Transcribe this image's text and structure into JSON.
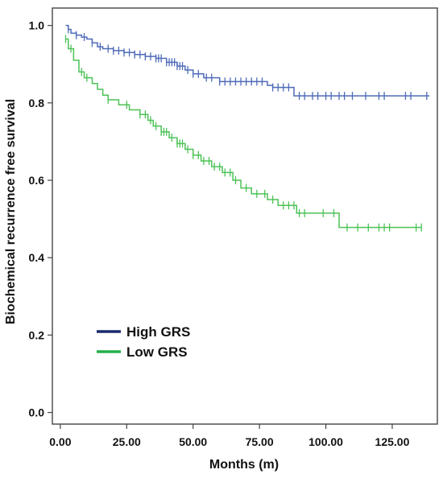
{
  "chart_data": {
    "type": "line",
    "subtype": "kaplan-meier-step",
    "title": "",
    "xlabel": "Months (m)",
    "ylabel": "Biochemical recurrence free survival",
    "xlim": [
      -3,
      142
    ],
    "ylim": [
      -0.03,
      1.045
    ],
    "x_ticks": [
      0,
      25,
      50,
      75,
      100,
      125
    ],
    "x_tick_labels": [
      "0.00",
      "25.00",
      "50.00",
      "75.00",
      "100.00",
      "125.00"
    ],
    "y_ticks": [
      0,
      0.2,
      0.4,
      0.6,
      0.8,
      1.0
    ],
    "y_tick_labels": [
      "0.0",
      "0.2",
      "0.4",
      "0.6",
      "0.8",
      "1.0"
    ],
    "grid": false,
    "legend_position": "bottom-left",
    "series": [
      {
        "name": "High GRS",
        "color": "#1a2b6e",
        "line_color": "#4f6bb8",
        "censor_color": "#4f6bb8",
        "steps": [
          [
            2,
            1.0
          ],
          [
            3,
            0.99
          ],
          [
            4,
            0.98
          ],
          [
            6,
            0.975
          ],
          [
            8,
            0.97
          ],
          [
            10,
            0.965
          ],
          [
            12,
            0.955
          ],
          [
            14,
            0.945
          ],
          [
            16,
            0.94
          ],
          [
            20,
            0.935
          ],
          [
            24,
            0.93
          ],
          [
            28,
            0.925
          ],
          [
            32,
            0.92
          ],
          [
            36,
            0.915
          ],
          [
            40,
            0.905
          ],
          [
            44,
            0.895
          ],
          [
            47,
            0.885
          ],
          [
            50,
            0.875
          ],
          [
            54,
            0.865
          ],
          [
            60,
            0.855
          ],
          [
            78,
            0.845
          ],
          [
            80,
            0.84
          ],
          [
            88,
            0.818
          ],
          [
            139,
            0.818
          ]
        ],
        "censored": [
          3,
          6,
          9,
          12,
          15,
          18,
          20,
          22,
          24,
          26,
          28,
          30,
          32,
          34,
          36,
          37,
          38,
          40,
          41,
          42,
          43,
          44,
          45,
          46,
          48,
          50,
          52,
          55,
          57,
          60,
          62,
          64,
          66,
          68,
          70,
          72,
          74,
          76,
          80,
          82,
          84,
          86,
          90,
          92,
          95,
          97,
          100,
          102,
          105,
          107,
          110,
          115,
          120,
          122,
          130,
          132,
          138
        ]
      },
      {
        "name": "Low GRS",
        "color": "#22b04a",
        "line_color": "#4cc257",
        "censor_color": "#4cc257",
        "steps": [
          [
            2,
            0.965
          ],
          [
            3,
            0.94
          ],
          [
            5,
            0.91
          ],
          [
            7,
            0.88
          ],
          [
            9,
            0.865
          ],
          [
            12,
            0.85
          ],
          [
            14,
            0.835
          ],
          [
            16,
            0.82
          ],
          [
            18,
            0.808
          ],
          [
            22,
            0.795
          ],
          [
            26,
            0.782
          ],
          [
            30,
            0.77
          ],
          [
            33,
            0.755
          ],
          [
            35,
            0.74
          ],
          [
            38,
            0.725
          ],
          [
            41,
            0.71
          ],
          [
            44,
            0.695
          ],
          [
            47,
            0.68
          ],
          [
            50,
            0.665
          ],
          [
            53,
            0.65
          ],
          [
            57,
            0.635
          ],
          [
            61,
            0.62
          ],
          [
            65,
            0.6
          ],
          [
            68,
            0.58
          ],
          [
            72,
            0.565
          ],
          [
            78,
            0.55
          ],
          [
            82,
            0.535
          ],
          [
            89,
            0.515
          ],
          [
            98,
            0.515
          ],
          [
            105,
            0.478
          ],
          [
            136,
            0.478
          ]
        ],
        "censored": [
          2,
          4,
          8,
          10,
          18,
          25,
          30,
          32,
          34,
          36,
          38,
          39,
          40,
          42,
          44,
          45,
          46,
          48,
          50,
          52,
          54,
          56,
          58,
          60,
          62,
          64,
          66,
          70,
          74,
          77,
          80,
          84,
          86,
          88,
          90,
          92,
          99,
          103,
          108,
          112,
          116,
          120,
          122,
          124,
          134,
          136
        ]
      }
    ]
  }
}
